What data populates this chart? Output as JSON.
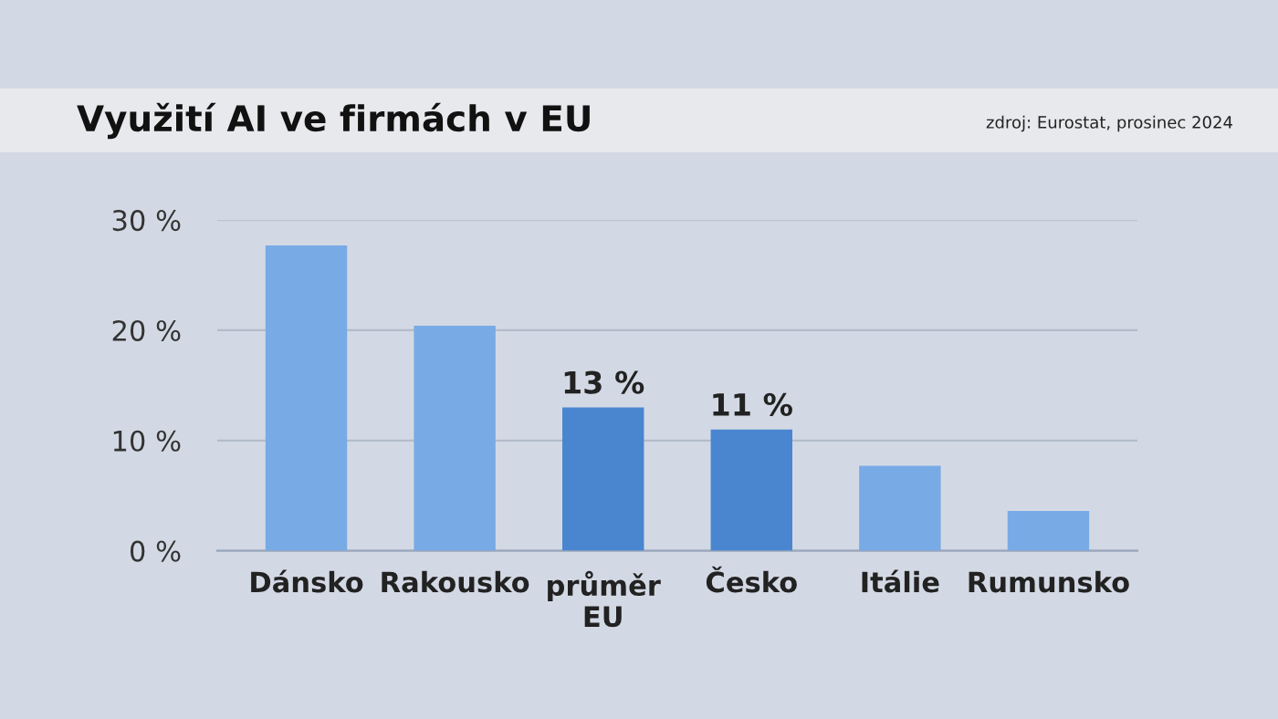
{
  "chart_data": {
    "type": "bar",
    "title": "Využití AI ve firmách v EU",
    "annotations": [
      "zdroj: Eurostat, prosinec 2024"
    ],
    "categories": [
      "Dánsko",
      "Rakousko",
      "průměr\nEU",
      "Česko",
      "Itálie",
      "Rumunsko"
    ],
    "values": [
      27.7,
      20.4,
      13,
      11,
      7.7,
      3.6
    ],
    "colors": [
      "#78aae6",
      "#78aae6",
      "#4a86d0",
      "#4a86d0",
      "#78aae6",
      "#78aae6"
    ],
    "value_labels": [
      null,
      null,
      "13 %",
      "11 %",
      null,
      null
    ],
    "ylim": [
      0,
      30
    ],
    "yticks": [
      {
        "value": 0,
        "label": "0 %"
      },
      {
        "value": 10,
        "label": "10 %"
      },
      {
        "value": 20,
        "label": "20 %"
      },
      {
        "value": 30,
        "label": "30 %"
      }
    ],
    "grid": "y"
  }
}
